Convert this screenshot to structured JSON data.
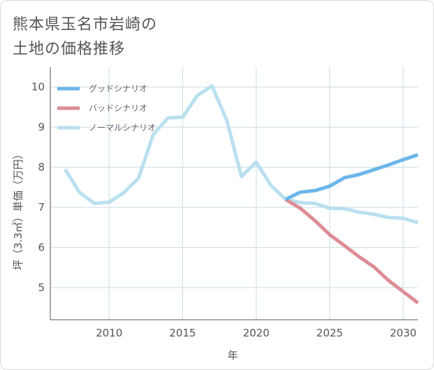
{
  "title_lines": [
    "熊本県玉名市岩崎の",
    "土地の価格推移"
  ],
  "chart_data": {
    "type": "line",
    "title": "熊本県玉名市岩崎の土地の価格推移",
    "xlabel": "年",
    "ylabel": "坪（3.3㎡）単価（万円）",
    "xlim": [
      2006,
      2031
    ],
    "ylim": [
      4.2,
      10.5
    ],
    "xticks": [
      2010,
      2015,
      2020,
      2025,
      2030
    ],
    "yticks": [
      5,
      6,
      7,
      8,
      9,
      10
    ],
    "grid": true,
    "legend_position": "top-left",
    "series": [
      {
        "name": "グッドシナリオ",
        "color": "#6bb6ea",
        "x": [
          2022,
          2023,
          2024,
          2025,
          2026,
          2027,
          2028,
          2029,
          2030,
          2031
        ],
        "y": [
          7.2,
          7.38,
          7.42,
          7.53,
          7.74,
          7.82,
          7.94,
          8.06,
          8.19,
          8.31
        ]
      },
      {
        "name": "バッドシナリオ",
        "color": "#de8c95",
        "x": [
          2022,
          2023,
          2024,
          2025,
          2026,
          2027,
          2028,
          2029,
          2030,
          2031
        ],
        "y": [
          7.2,
          6.98,
          6.67,
          6.32,
          6.05,
          5.77,
          5.52,
          5.18,
          4.9,
          4.62
        ]
      },
      {
        "name": "ノーマルシナリオ",
        "color": "#b9e0ee",
        "x": [
          2007,
          2008,
          2009,
          2010,
          2011,
          2012,
          2013,
          2014,
          2015,
          2016,
          2017,
          2018,
          2019,
          2020,
          2021,
          2022,
          2023,
          2024,
          2025,
          2026,
          2027,
          2028,
          2029,
          2030,
          2031
        ],
        "y": [
          7.95,
          7.37,
          7.1,
          7.13,
          7.37,
          7.73,
          8.82,
          9.23,
          9.25,
          9.79,
          10.03,
          9.17,
          7.77,
          8.13,
          7.55,
          7.2,
          7.12,
          7.1,
          6.98,
          6.97,
          6.88,
          6.83,
          6.75,
          6.73,
          6.62
        ]
      }
    ]
  }
}
